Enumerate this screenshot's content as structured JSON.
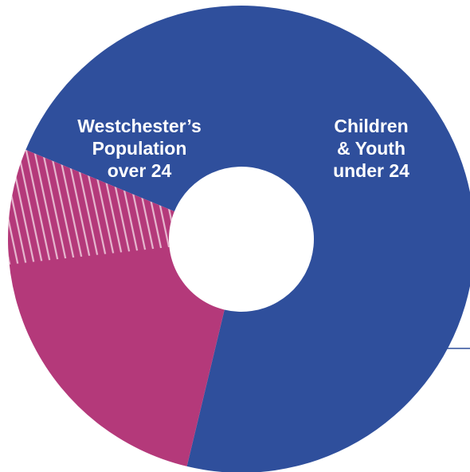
{
  "chart_data": {
    "type": "pie",
    "variant": "donut",
    "slices": [
      {
        "label_lines": [
          "Westchester’s",
          "Population",
          "over 24"
        ],
        "value": 72.5,
        "color": "#2F4F9C"
      },
      {
        "label_lines": [
          "Children",
          "& Youth",
          "under 24"
        ],
        "value": 27.5,
        "color": "#B4397A",
        "hatched_fraction": 0.29
      }
    ],
    "hatch_color": "#E6B8CF",
    "leader_line_color": "#2F4F9C"
  }
}
